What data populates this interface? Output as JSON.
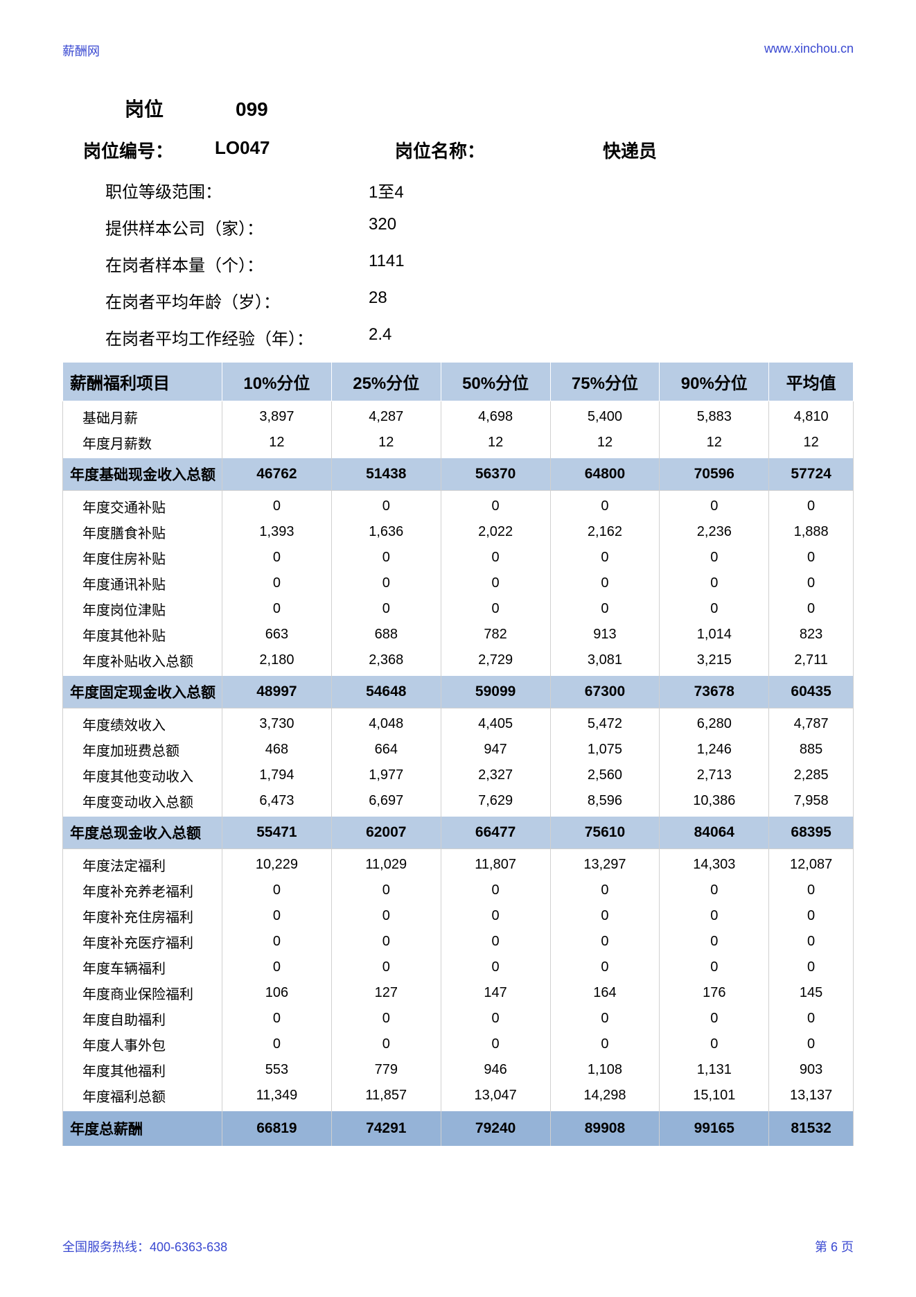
{
  "header": {
    "site_name": "薪酬网",
    "site_url": "www.xinchou.cn"
  },
  "title": {
    "position_label": "岗位",
    "position_number": "099",
    "code_label": "岗位编号：",
    "code_value": "LO047",
    "name_label": "岗位名称：",
    "name_value": "快递员"
  },
  "meta": {
    "level_range_label": "职位等级范围：",
    "level_range_value": "1至4",
    "company_count_label": "提供样本公司（家）：",
    "company_count_value": "320",
    "sample_size_label": "在岗者样本量（个）：",
    "sample_size_value": "1141",
    "avg_age_label": "在岗者平均年龄（岁）：",
    "avg_age_value": "28",
    "avg_exp_label": "在岗者平均工作经验（年）：",
    "avg_exp_value": "2.4"
  },
  "table": {
    "columns": [
      "薪酬福利项目",
      "10%分位",
      "25%分位",
      "50%分位",
      "75%分位",
      "90%分位",
      "平均值"
    ],
    "background_light": "#b8cce4",
    "background_dark": "#95b3d7",
    "rows": [
      {
        "type": "plain",
        "label": "基础月薪",
        "cells": [
          "3,897",
          "4,287",
          "4,698",
          "5,400",
          "5,883",
          "4,810"
        ]
      },
      {
        "type": "plain",
        "label": "年度月薪数",
        "cells": [
          "12",
          "12",
          "12",
          "12",
          "12",
          "12"
        ]
      },
      {
        "type": "subtotal",
        "label": "年度基础现金收入总额",
        "cells": [
          "46762",
          "51438",
          "56370",
          "64800",
          "70596",
          "57724"
        ]
      },
      {
        "type": "plain",
        "label": "年度交通补贴",
        "cells": [
          "0",
          "0",
          "0",
          "0",
          "0",
          "0"
        ]
      },
      {
        "type": "plain",
        "label": "年度膳食补贴",
        "cells": [
          "1,393",
          "1,636",
          "2,022",
          "2,162",
          "2,236",
          "1,888"
        ]
      },
      {
        "type": "plain",
        "label": "年度住房补贴",
        "cells": [
          "0",
          "0",
          "0",
          "0",
          "0",
          "0"
        ]
      },
      {
        "type": "plain",
        "label": "年度通讯补贴",
        "cells": [
          "0",
          "0",
          "0",
          "0",
          "0",
          "0"
        ]
      },
      {
        "type": "plain",
        "label": "年度岗位津贴",
        "cells": [
          "0",
          "0",
          "0",
          "0",
          "0",
          "0"
        ]
      },
      {
        "type": "plain",
        "label": "年度其他补贴",
        "cells": [
          "663",
          "688",
          "782",
          "913",
          "1,014",
          "823"
        ]
      },
      {
        "type": "plain",
        "label": "年度补贴收入总额",
        "cells": [
          "2,180",
          "2,368",
          "2,729",
          "3,081",
          "3,215",
          "2,711"
        ]
      },
      {
        "type": "subtotal",
        "label": "年度固定现金收入总额",
        "cells": [
          "48997",
          "54648",
          "59099",
          "67300",
          "73678",
          "60435"
        ]
      },
      {
        "type": "plain",
        "label": "年度绩效收入",
        "cells": [
          "3,730",
          "4,048",
          "4,405",
          "5,472",
          "6,280",
          "4,787"
        ]
      },
      {
        "type": "plain",
        "label": "年度加班费总额",
        "cells": [
          "468",
          "664",
          "947",
          "1,075",
          "1,246",
          "885"
        ]
      },
      {
        "type": "plain",
        "label": "年度其他变动收入",
        "cells": [
          "1,794",
          "1,977",
          "2,327",
          "2,560",
          "2,713",
          "2,285"
        ]
      },
      {
        "type": "plain",
        "label": "年度变动收入总额",
        "cells": [
          "6,473",
          "6,697",
          "7,629",
          "8,596",
          "10,386",
          "7,958"
        ]
      },
      {
        "type": "subtotal",
        "label": "年度总现金收入总额",
        "cells": [
          "55471",
          "62007",
          "66477",
          "75610",
          "84064",
          "68395"
        ]
      },
      {
        "type": "plain",
        "label": "年度法定福利",
        "cells": [
          "10,229",
          "11,029",
          "11,807",
          "13,297",
          "14,303",
          "12,087"
        ]
      },
      {
        "type": "plain",
        "label": "年度补充养老福利",
        "cells": [
          "0",
          "0",
          "0",
          "0",
          "0",
          "0"
        ]
      },
      {
        "type": "plain",
        "label": "年度补充住房福利",
        "cells": [
          "0",
          "0",
          "0",
          "0",
          "0",
          "0"
        ]
      },
      {
        "type": "plain",
        "label": "年度补充医疗福利",
        "cells": [
          "0",
          "0",
          "0",
          "0",
          "0",
          "0"
        ]
      },
      {
        "type": "plain",
        "label": "年度车辆福利",
        "cells": [
          "0",
          "0",
          "0",
          "0",
          "0",
          "0"
        ]
      },
      {
        "type": "plain",
        "label": "年度商业保险福利",
        "cells": [
          "106",
          "127",
          "147",
          "164",
          "176",
          "145"
        ]
      },
      {
        "type": "plain",
        "label": "年度自助福利",
        "cells": [
          "0",
          "0",
          "0",
          "0",
          "0",
          "0"
        ]
      },
      {
        "type": "plain",
        "label": "年度人事外包",
        "cells": [
          "0",
          "0",
          "0",
          "0",
          "0",
          "0"
        ]
      },
      {
        "type": "plain",
        "label": "年度其他福利",
        "cells": [
          "553",
          "779",
          "946",
          "1,108",
          "1,131",
          "903"
        ]
      },
      {
        "type": "plain",
        "label": "年度福利总额",
        "cells": [
          "11,349",
          "11,857",
          "13,047",
          "14,298",
          "15,101",
          "13,137"
        ]
      },
      {
        "type": "grand",
        "label": "年度总薪酬",
        "cells": [
          "66819",
          "74291",
          "79240",
          "89908",
          "99165",
          "81532"
        ]
      }
    ]
  },
  "footer": {
    "hotline": "全国服务热线：400-6363-638",
    "page_number": "第 6 页"
  }
}
